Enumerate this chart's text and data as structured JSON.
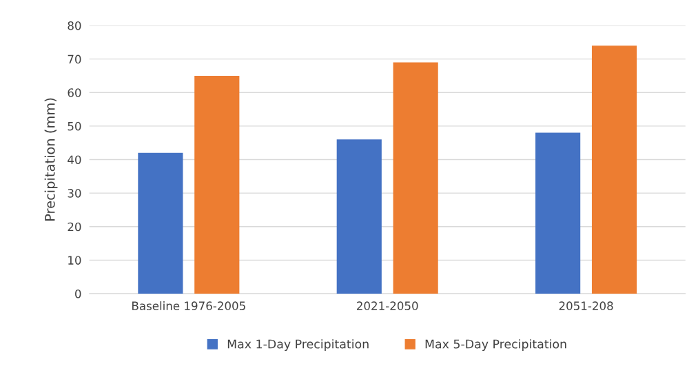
{
  "chart_data": {
    "type": "bar",
    "ylabel": "Precipitation (mm)",
    "categories": [
      "Baseline 1976-2005",
      "2021-2050",
      "2051-208"
    ],
    "series": [
      {
        "name": "Max 1-Day Precipitation",
        "color": "#4472c4",
        "values": [
          42,
          46,
          48
        ]
      },
      {
        "name": "Max 5-Day Precipitation",
        "color": "#ed7d31",
        "values": [
          65,
          69,
          74
        ]
      }
    ],
    "ylim": [
      0,
      80
    ],
    "yticks": [
      0,
      10,
      20,
      30,
      40,
      50,
      60,
      70,
      80
    ],
    "grid": "y",
    "legend": "bottom"
  }
}
